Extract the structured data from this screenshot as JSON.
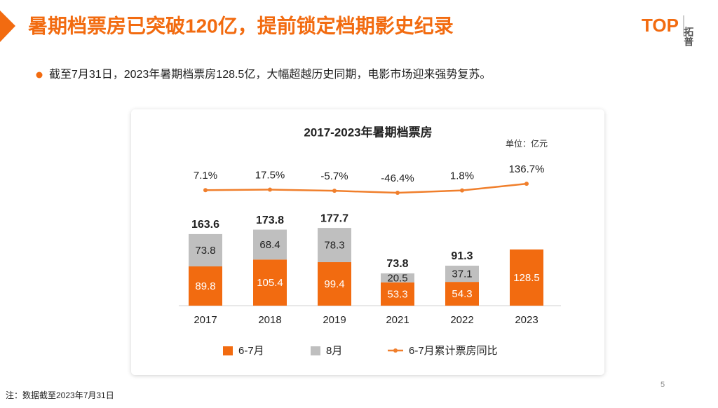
{
  "header": {
    "title": "暑期档票房已突破120亿，提前锁定档期影史纪录",
    "logo_mark": "TOP",
    "logo_name": "拓普"
  },
  "bullet": "截至7月31日，2023年暑期档票房128.5亿，大幅超越历史同期，电影市场迎来强势复苏。",
  "chart_data": {
    "type": "bar",
    "stacked": true,
    "title": "2017-2023年暑期档票房",
    "unit_label": "单位：亿元",
    "categories": [
      "2017",
      "2018",
      "2019",
      "2021",
      "2022",
      "2023"
    ],
    "series": [
      {
        "name": "6-7月",
        "color": "#f26b10",
        "values": [
          89.8,
          105.4,
          99.4,
          53.3,
          54.3,
          128.5
        ]
      },
      {
        "name": "8月",
        "color": "#bfbfbf",
        "values": [
          73.8,
          68.4,
          78.3,
          20.5,
          37.1,
          null
        ]
      },
      {
        "name": "6-7月累计票房同比",
        "color": "#f07f2c",
        "type": "line",
        "axis": "y2",
        "values": [
          7.1,
          17.5,
          -5.7,
          -46.4,
          1.8,
          136.7
        ],
        "value_labels": [
          "7.1%",
          "17.5%",
          "-5.7%",
          "-46.4%",
          "1.8%",
          "136.7%"
        ]
      }
    ],
    "totals": [
      163.6,
      173.8,
      177.7,
      73.8,
      91.3,
      null
    ],
    "ylim": [
      0,
      250
    ],
    "y2lim": [
      -400,
      450
    ],
    "legend": "bottom"
  },
  "footnote": "注：数据截至2023年7月31日",
  "page_number": "5"
}
